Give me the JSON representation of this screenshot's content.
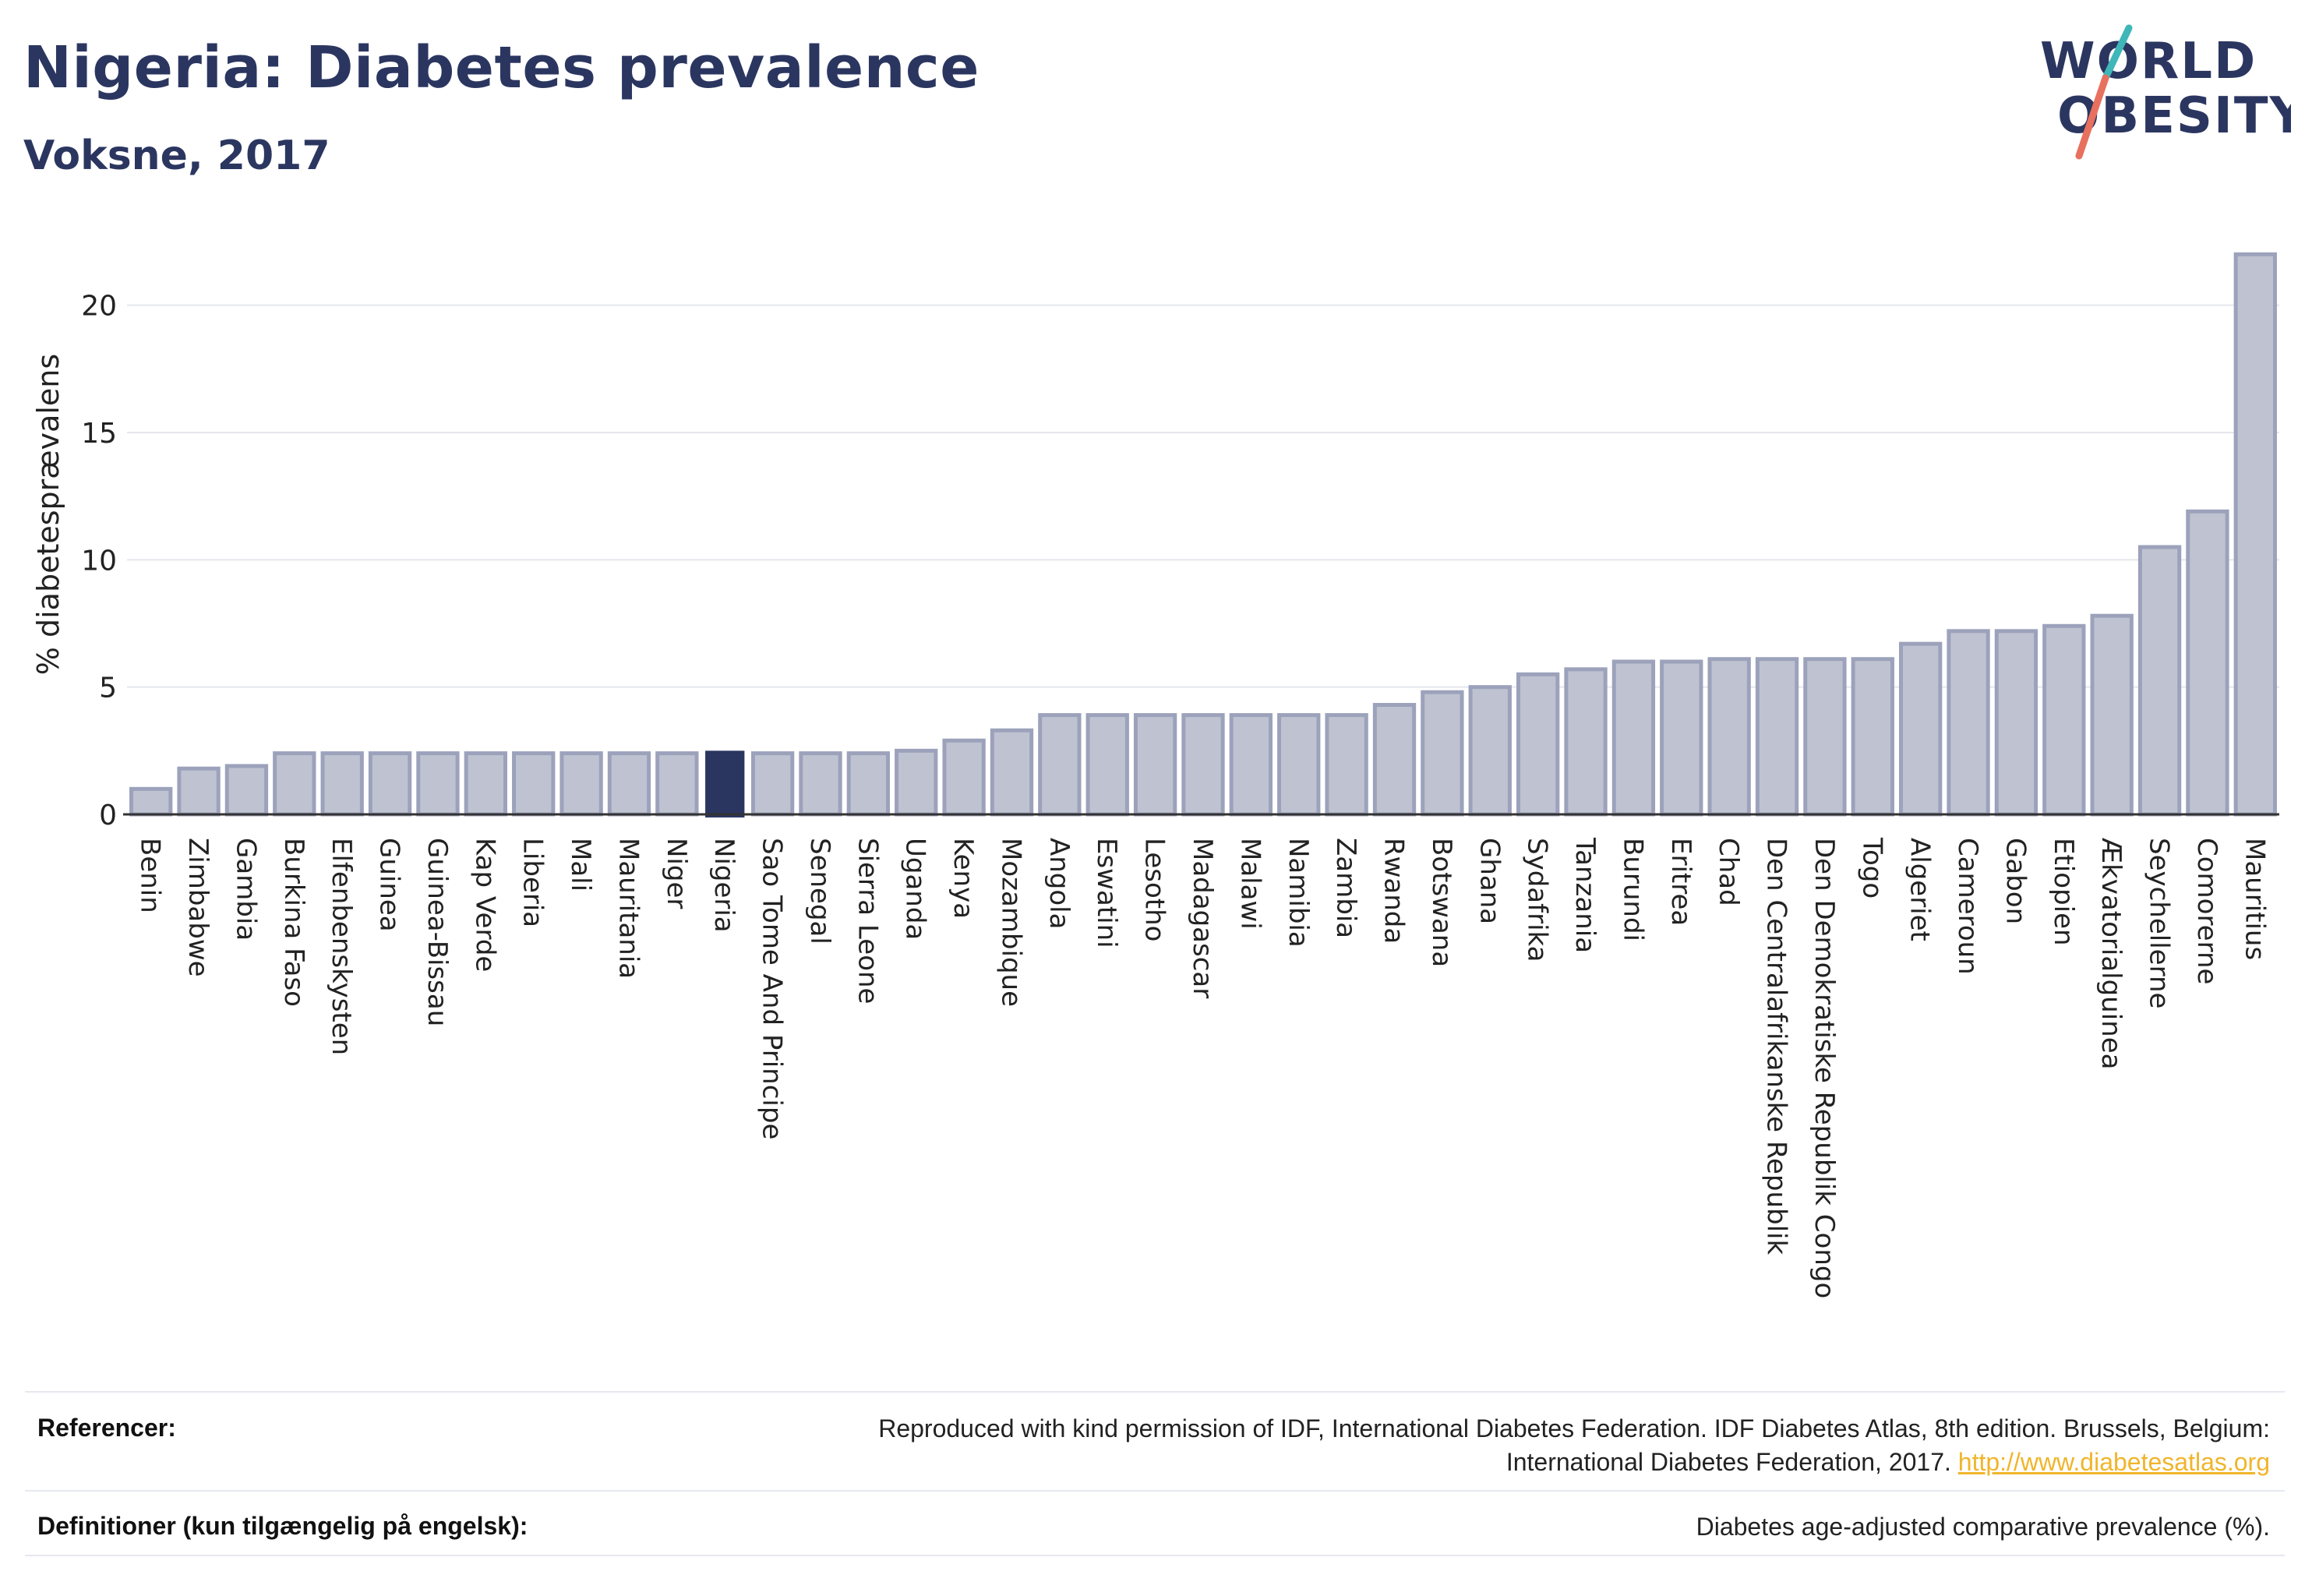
{
  "header": {
    "title": "Nigeria: Diabetes prevalence",
    "subtitle": "Voksne, 2017"
  },
  "logo": {
    "line1": "WORLD",
    "line2": "OBESITY",
    "slash_colors": [
      "#3fb6b8",
      "#e8705e"
    ]
  },
  "colors": {
    "bar_fill": "#bfc3d1",
    "bar_stroke": "#9ca2bb",
    "highlight": "#2b3660",
    "text": "#2b3660",
    "link": "#f0b52a"
  },
  "chart_data": {
    "type": "bar",
    "ylabel": "% diabetesprævalens",
    "ylim": [
      0,
      22.5
    ],
    "yticks": [
      0,
      5,
      10,
      15,
      20
    ],
    "grid": true,
    "highlight": "Nigeria",
    "categories": [
      "Benin",
      "Zimbabwe",
      "Gambia",
      "Burkina Faso",
      "Elfenbenskysten",
      "Guinea",
      "Guinea-Bissau",
      "Kap Verde",
      "Liberia",
      "Mali",
      "Mauritania",
      "Niger",
      "Nigeria",
      "Sao Tome And Principe",
      "Senegal",
      "Sierra Leone",
      "Uganda",
      "Kenya",
      "Mozambique",
      "Angola",
      "Eswatini",
      "Lesotho",
      "Madagascar",
      "Malawi",
      "Namibia",
      "Zambia",
      "Rwanda",
      "Botswana",
      "Ghana",
      "Sydafrika",
      "Tanzania",
      "Burundi",
      "Eritrea",
      "Chad",
      "Den Centralafrikanske Republik",
      "Den Demokratiske Republik Congo",
      "Togo",
      "Algeriet",
      "Cameroun",
      "Gabon",
      "Etiopien",
      "Ækvatorialguinea",
      "Seychellerne",
      "Comorerne",
      "Mauritius"
    ],
    "values": [
      1.0,
      1.8,
      1.9,
      2.4,
      2.4,
      2.4,
      2.4,
      2.4,
      2.4,
      2.4,
      2.4,
      2.4,
      2.5,
      2.4,
      2.4,
      2.4,
      2.5,
      2.9,
      3.3,
      3.9,
      3.9,
      3.9,
      3.9,
      3.9,
      3.9,
      3.9,
      4.3,
      4.8,
      5.0,
      5.5,
      5.7,
      6.0,
      6.0,
      6.1,
      6.1,
      6.1,
      6.1,
      6.7,
      7.2,
      7.2,
      7.4,
      7.8,
      10.5,
      11.9,
      22.0
    ]
  },
  "footer": {
    "references_label": "Referencer:",
    "references_line1": "Reproduced with kind permission of IDF, International Diabetes Federation. IDF Diabetes Atlas, 8th edition. Brussels, Belgium:",
    "references_line2": "International Diabetes Federation, 2017.",
    "references_link": "http://www.diabetesatlas.org",
    "definitions_label": "Definitioner (kun tilgængelig på engelsk):",
    "definitions_text": "Diabetes age-adjusted comparative prevalence (%)."
  }
}
